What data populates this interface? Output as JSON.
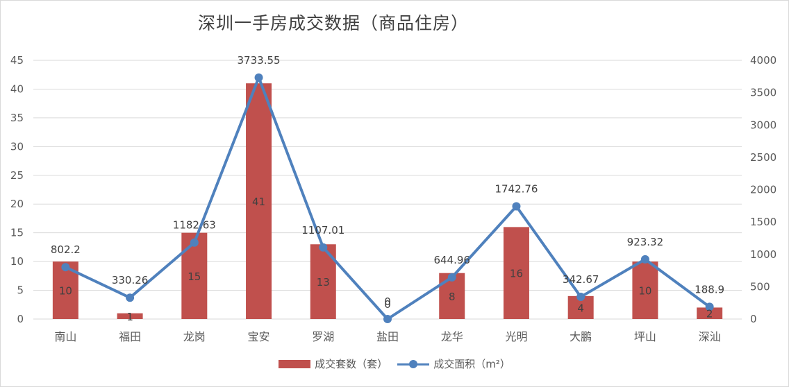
{
  "chart_data": {
    "type": "bar",
    "title": "深圳一手房成交数据（商品住房）",
    "categories": [
      "南山",
      "福田",
      "龙岗",
      "宝安",
      "罗湖",
      "盐田",
      "龙华",
      "光明",
      "大鹏",
      "坪山",
      "深汕"
    ],
    "series": [
      {
        "name": "成交套数（套）",
        "type": "bar",
        "axis": "left",
        "color": "#c0504d",
        "values": [
          10,
          1,
          15,
          41,
          13,
          0,
          8,
          16,
          4,
          10,
          2
        ]
      },
      {
        "name": "成交面积（m²）",
        "type": "line",
        "axis": "right",
        "color": "#4f81bd",
        "values": [
          802.2,
          330.26,
          1182.63,
          3733.55,
          1107.01,
          0,
          644.96,
          1742.76,
          342.67,
          923.32,
          188.9
        ]
      }
    ],
    "y_left": {
      "min": 0,
      "max": 45,
      "ticks": [
        0,
        5,
        10,
        15,
        20,
        25,
        30,
        35,
        40,
        45
      ]
    },
    "y_right": {
      "min": 0,
      "max": 4000,
      "ticks": [
        0,
        500,
        1000,
        1500,
        2000,
        2500,
        3000,
        3500,
        4000
      ]
    },
    "grid": true,
    "legend_position": "bottom"
  }
}
